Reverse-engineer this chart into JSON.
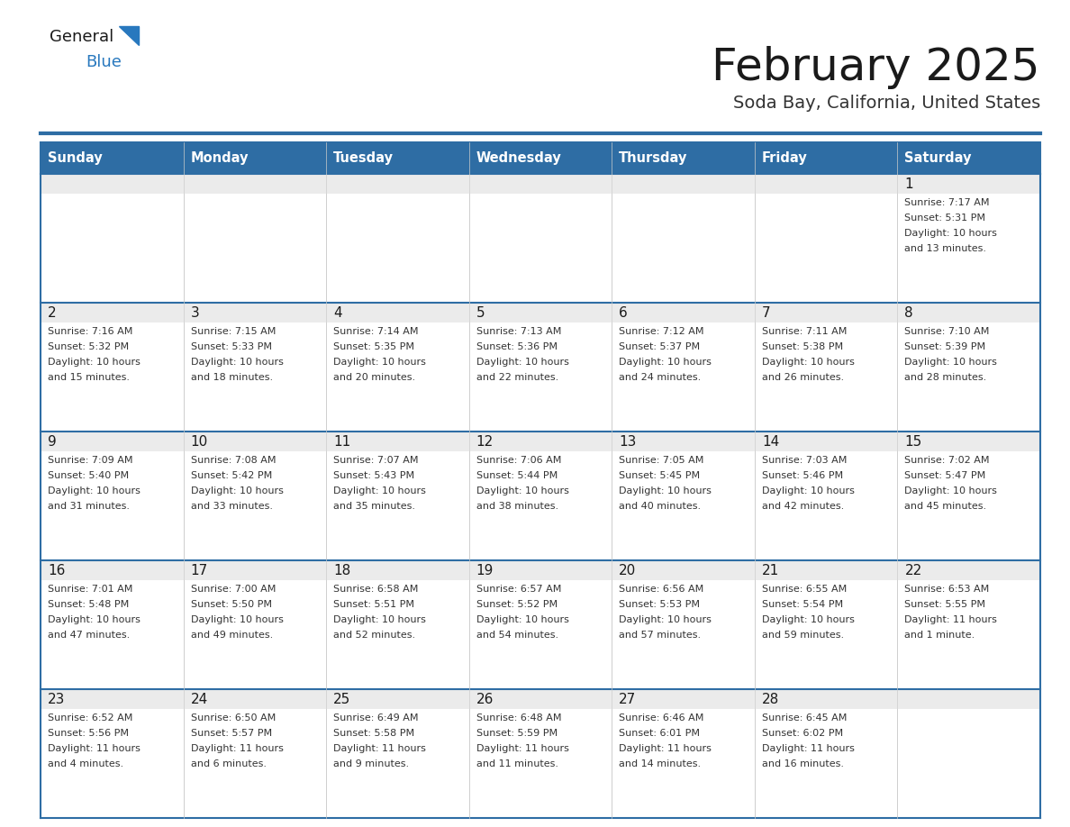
{
  "title": "February 2025",
  "subtitle": "Soda Bay, California, United States",
  "header_bg": "#2E6DA4",
  "header_text_color": "#FFFFFF",
  "cell_bg_top": "#EBEBEB",
  "cell_bg_main": "#FFFFFF",
  "border_color": "#2E6DA4",
  "cell_border_color": "#CCCCCC",
  "day_names": [
    "Sunday",
    "Monday",
    "Tuesday",
    "Wednesday",
    "Thursday",
    "Friday",
    "Saturday"
  ],
  "title_color": "#1a1a1a",
  "subtitle_color": "#333333",
  "day_num_color": "#1a1a1a",
  "cell_text_color": "#333333",
  "logo_general_color": "#1a1a1a",
  "logo_blue_color": "#2878BE",
  "logo_triangle_color": "#2878BE",
  "days": [
    {
      "date": 1,
      "row": 0,
      "col": 6,
      "sunrise": "7:17 AM",
      "sunset": "5:31 PM",
      "daylight": "10 hours and 13 minutes."
    },
    {
      "date": 2,
      "row": 1,
      "col": 0,
      "sunrise": "7:16 AM",
      "sunset": "5:32 PM",
      "daylight": "10 hours and 15 minutes."
    },
    {
      "date": 3,
      "row": 1,
      "col": 1,
      "sunrise": "7:15 AM",
      "sunset": "5:33 PM",
      "daylight": "10 hours and 18 minutes."
    },
    {
      "date": 4,
      "row": 1,
      "col": 2,
      "sunrise": "7:14 AM",
      "sunset": "5:35 PM",
      "daylight": "10 hours and 20 minutes."
    },
    {
      "date": 5,
      "row": 1,
      "col": 3,
      "sunrise": "7:13 AM",
      "sunset": "5:36 PM",
      "daylight": "10 hours and 22 minutes."
    },
    {
      "date": 6,
      "row": 1,
      "col": 4,
      "sunrise": "7:12 AM",
      "sunset": "5:37 PM",
      "daylight": "10 hours and 24 minutes."
    },
    {
      "date": 7,
      "row": 1,
      "col": 5,
      "sunrise": "7:11 AM",
      "sunset": "5:38 PM",
      "daylight": "10 hours and 26 minutes."
    },
    {
      "date": 8,
      "row": 1,
      "col": 6,
      "sunrise": "7:10 AM",
      "sunset": "5:39 PM",
      "daylight": "10 hours and 28 minutes."
    },
    {
      "date": 9,
      "row": 2,
      "col": 0,
      "sunrise": "7:09 AM",
      "sunset": "5:40 PM",
      "daylight": "10 hours and 31 minutes."
    },
    {
      "date": 10,
      "row": 2,
      "col": 1,
      "sunrise": "7:08 AM",
      "sunset": "5:42 PM",
      "daylight": "10 hours and 33 minutes."
    },
    {
      "date": 11,
      "row": 2,
      "col": 2,
      "sunrise": "7:07 AM",
      "sunset": "5:43 PM",
      "daylight": "10 hours and 35 minutes."
    },
    {
      "date": 12,
      "row": 2,
      "col": 3,
      "sunrise": "7:06 AM",
      "sunset": "5:44 PM",
      "daylight": "10 hours and 38 minutes."
    },
    {
      "date": 13,
      "row": 2,
      "col": 4,
      "sunrise": "7:05 AM",
      "sunset": "5:45 PM",
      "daylight": "10 hours and 40 minutes."
    },
    {
      "date": 14,
      "row": 2,
      "col": 5,
      "sunrise": "7:03 AM",
      "sunset": "5:46 PM",
      "daylight": "10 hours and 42 minutes."
    },
    {
      "date": 15,
      "row": 2,
      "col": 6,
      "sunrise": "7:02 AM",
      "sunset": "5:47 PM",
      "daylight": "10 hours and 45 minutes."
    },
    {
      "date": 16,
      "row": 3,
      "col": 0,
      "sunrise": "7:01 AM",
      "sunset": "5:48 PM",
      "daylight": "10 hours and 47 minutes."
    },
    {
      "date": 17,
      "row": 3,
      "col": 1,
      "sunrise": "7:00 AM",
      "sunset": "5:50 PM",
      "daylight": "10 hours and 49 minutes."
    },
    {
      "date": 18,
      "row": 3,
      "col": 2,
      "sunrise": "6:58 AM",
      "sunset": "5:51 PM",
      "daylight": "10 hours and 52 minutes."
    },
    {
      "date": 19,
      "row": 3,
      "col": 3,
      "sunrise": "6:57 AM",
      "sunset": "5:52 PM",
      "daylight": "10 hours and 54 minutes."
    },
    {
      "date": 20,
      "row": 3,
      "col": 4,
      "sunrise": "6:56 AM",
      "sunset": "5:53 PM",
      "daylight": "10 hours and 57 minutes."
    },
    {
      "date": 21,
      "row": 3,
      "col": 5,
      "sunrise": "6:55 AM",
      "sunset": "5:54 PM",
      "daylight": "10 hours and 59 minutes."
    },
    {
      "date": 22,
      "row": 3,
      "col": 6,
      "sunrise": "6:53 AM",
      "sunset": "5:55 PM",
      "daylight": "11 hours and 1 minute."
    },
    {
      "date": 23,
      "row": 4,
      "col": 0,
      "sunrise": "6:52 AM",
      "sunset": "5:56 PM",
      "daylight": "11 hours and 4 minutes."
    },
    {
      "date": 24,
      "row": 4,
      "col": 1,
      "sunrise": "6:50 AM",
      "sunset": "5:57 PM",
      "daylight": "11 hours and 6 minutes."
    },
    {
      "date": 25,
      "row": 4,
      "col": 2,
      "sunrise": "6:49 AM",
      "sunset": "5:58 PM",
      "daylight": "11 hours and 9 minutes."
    },
    {
      "date": 26,
      "row": 4,
      "col": 3,
      "sunrise": "6:48 AM",
      "sunset": "5:59 PM",
      "daylight": "11 hours and 11 minutes."
    },
    {
      "date": 27,
      "row": 4,
      "col": 4,
      "sunrise": "6:46 AM",
      "sunset": "6:01 PM",
      "daylight": "11 hours and 14 minutes."
    },
    {
      "date": 28,
      "row": 4,
      "col": 5,
      "sunrise": "6:45 AM",
      "sunset": "6:02 PM",
      "daylight": "11 hours and 16 minutes."
    }
  ]
}
